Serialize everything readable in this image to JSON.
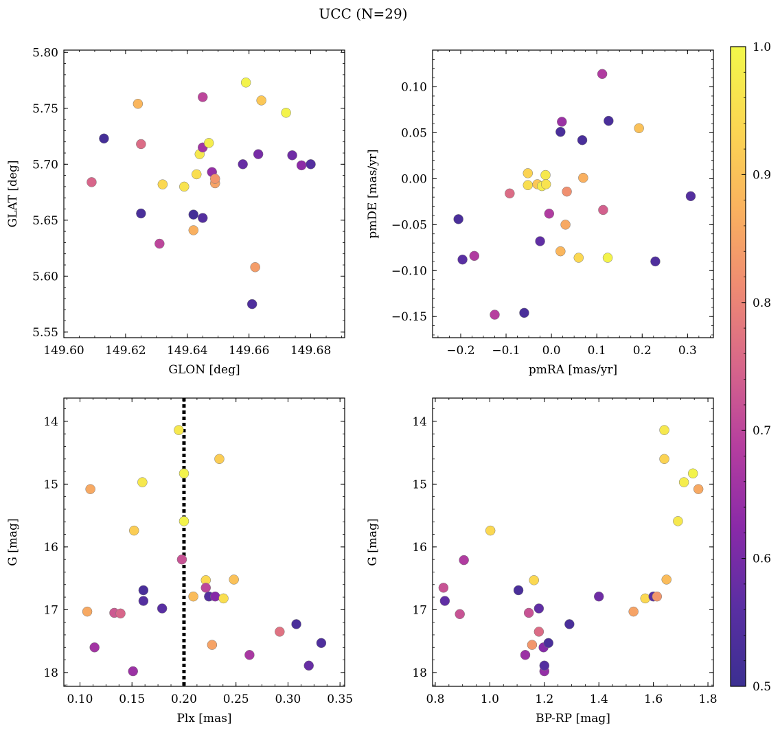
{
  "figure": {
    "title": "UCC (N=29)",
    "colorbar": {
      "min": 0.5,
      "max": 1.0,
      "ticks": [
        "0.5",
        "0.6",
        "0.7",
        "0.8",
        "0.9",
        "1.0"
      ],
      "tick_values": [
        0.5,
        0.6,
        0.7,
        0.8,
        0.9,
        1.0
      ],
      "colormap": "plasma (truncated)",
      "colors": [
        "#3b2f91",
        "#5a2fa3",
        "#8a2aa8",
        "#b53e9f",
        "#d7668a",
        "#ef8b72",
        "#fab35e",
        "#fbd752",
        "#f2f84a"
      ]
    },
    "marker_edge_color": "#777777",
    "vline_color": "#000000"
  },
  "chart_data": [
    {
      "type": "scatter",
      "title": "",
      "xlabel": "GLON [deg]",
      "ylabel": "GLAT [deg]",
      "xlim": [
        149.6,
        149.691
      ],
      "ylim": [
        5.545,
        5.802
      ],
      "y_inverted": false,
      "xticks": [
        149.6,
        149.62,
        149.64,
        149.66,
        149.68
      ],
      "xtick_labels": [
        "149.60",
        "149.62",
        "149.64",
        "149.66",
        "149.68"
      ],
      "yticks": [
        5.55,
        5.6,
        5.65,
        5.7,
        5.75,
        5.8
      ],
      "ytick_labels": [
        "5.55",
        "5.60",
        "5.65",
        "5.70",
        "5.75",
        "5.80"
      ],
      "points": [
        {
          "x": 149.613,
          "y": 5.723,
          "c": 0.52
        },
        {
          "x": 149.609,
          "y": 5.684,
          "c": 0.75
        },
        {
          "x": 149.624,
          "y": 5.754,
          "c": 0.88
        },
        {
          "x": 149.625,
          "y": 5.718,
          "c": 0.76
        },
        {
          "x": 149.625,
          "y": 5.656,
          "c": 0.53
        },
        {
          "x": 149.631,
          "y": 5.629,
          "c": 0.7
        },
        {
          "x": 149.632,
          "y": 5.682,
          "c": 0.94
        },
        {
          "x": 149.639,
          "y": 5.68,
          "c": 0.96
        },
        {
          "x": 149.642,
          "y": 5.641,
          "c": 0.87
        },
        {
          "x": 149.642,
          "y": 5.655,
          "c": 0.52
        },
        {
          "x": 149.643,
          "y": 5.691,
          "c": 0.95
        },
        {
          "x": 149.644,
          "y": 5.709,
          "c": 0.97
        },
        {
          "x": 149.645,
          "y": 5.76,
          "c": 0.7
        },
        {
          "x": 149.645,
          "y": 5.652,
          "c": 0.55
        },
        {
          "x": 149.645,
          "y": 5.715,
          "c": 0.66
        },
        {
          "x": 149.647,
          "y": 5.719,
          "c": 0.98
        },
        {
          "x": 149.648,
          "y": 5.693,
          "c": 0.64
        },
        {
          "x": 149.649,
          "y": 5.683,
          "c": 0.85
        },
        {
          "x": 149.649,
          "y": 5.687,
          "c": 0.83
        },
        {
          "x": 149.658,
          "y": 5.7,
          "c": 0.58
        },
        {
          "x": 149.659,
          "y": 5.773,
          "c": 0.99
        },
        {
          "x": 149.661,
          "y": 5.575,
          "c": 0.54
        },
        {
          "x": 149.662,
          "y": 5.608,
          "c": 0.84
        },
        {
          "x": 149.663,
          "y": 5.709,
          "c": 0.6
        },
        {
          "x": 149.664,
          "y": 5.757,
          "c": 0.91
        },
        {
          "x": 149.672,
          "y": 5.746,
          "c": 0.99
        },
        {
          "x": 149.674,
          "y": 5.708,
          "c": 0.59
        },
        {
          "x": 149.677,
          "y": 5.699,
          "c": 0.63
        },
        {
          "x": 149.68,
          "y": 5.7,
          "c": 0.55
        }
      ]
    },
    {
      "type": "scatter",
      "title": "",
      "xlabel": "pmRA [mas/yr]",
      "ylabel": "pmDE [mas/yr]",
      "xlim": [
        -0.262,
        0.357
      ],
      "ylim": [
        -0.173,
        0.14
      ],
      "y_inverted": false,
      "xticks": [
        -0.2,
        -0.1,
        0.0,
        0.1,
        0.2,
        0.3
      ],
      "xtick_labels": [
        "−0.2",
        "−0.1",
        "0.0",
        "0.1",
        "0.2",
        "0.3"
      ],
      "yticks": [
        -0.15,
        -0.1,
        -0.05,
        0.0,
        0.05,
        0.1
      ],
      "ytick_labels": [
        "−0.15",
        "−0.10",
        "−0.05",
        "0.00",
        "0.05",
        "0.10"
      ],
      "points": [
        {
          "x": -0.205,
          "y": -0.044,
          "c": 0.53
        },
        {
          "x": -0.196,
          "y": -0.088,
          "c": 0.56
        },
        {
          "x": -0.17,
          "y": -0.084,
          "c": 0.68
        },
        {
          "x": -0.125,
          "y": -0.148,
          "c": 0.69
        },
        {
          "x": -0.092,
          "y": -0.016,
          "c": 0.76
        },
        {
          "x": -0.06,
          "y": -0.146,
          "c": 0.53
        },
        {
          "x": -0.052,
          "y": 0.006,
          "c": 0.93
        },
        {
          "x": -0.052,
          "y": -0.007,
          "c": 0.95
        },
        {
          "x": -0.031,
          "y": -0.006,
          "c": 0.91
        },
        {
          "x": -0.025,
          "y": -0.068,
          "c": 0.57
        },
        {
          "x": -0.021,
          "y": -0.008,
          "c": 0.98
        },
        {
          "x": -0.013,
          "y": 0.004,
          "c": 0.97
        },
        {
          "x": -0.012,
          "y": -0.006,
          "c": 0.96
        },
        {
          "x": -0.005,
          "y": -0.038,
          "c": 0.68
        },
        {
          "x": 0.02,
          "y": 0.051,
          "c": 0.53
        },
        {
          "x": 0.02,
          "y": -0.079,
          "c": 0.88
        },
        {
          "x": 0.023,
          "y": 0.062,
          "c": 0.65
        },
        {
          "x": 0.031,
          "y": -0.05,
          "c": 0.86
        },
        {
          "x": 0.034,
          "y": -0.014,
          "c": 0.82
        },
        {
          "x": 0.06,
          "y": -0.086,
          "c": 0.94
        },
        {
          "x": 0.068,
          "y": 0.042,
          "c": 0.53
        },
        {
          "x": 0.07,
          "y": 0.001,
          "c": 0.87
        },
        {
          "x": 0.112,
          "y": 0.114,
          "c": 0.68
        },
        {
          "x": 0.114,
          "y": -0.034,
          "c": 0.74
        },
        {
          "x": 0.124,
          "y": -0.086,
          "c": 0.99
        },
        {
          "x": 0.126,
          "y": 0.063,
          "c": 0.53
        },
        {
          "x": 0.193,
          "y": 0.055,
          "c": 0.9
        },
        {
          "x": 0.229,
          "y": -0.09,
          "c": 0.54
        },
        {
          "x": 0.307,
          "y": -0.019,
          "c": 0.55
        }
      ]
    },
    {
      "type": "scatter",
      "title": "",
      "xlabel": "Plx [mas]",
      "ylabel": "G [mag]",
      "xlim": [
        0.0845,
        0.3545
      ],
      "ylim": [
        13.63,
        18.22
      ],
      "y_inverted": true,
      "xticks": [
        0.1,
        0.15,
        0.2,
        0.25,
        0.3,
        0.35
      ],
      "xtick_labels": [
        "0.10",
        "0.15",
        "0.20",
        "0.25",
        "0.30",
        "0.35"
      ],
      "yticks": [
        14,
        15,
        16,
        17,
        18
      ],
      "ytick_labels": [
        "14",
        "15",
        "16",
        "17",
        "18"
      ],
      "vline": {
        "x": 0.2,
        "style": "dotted"
      },
      "points": [
        {
          "x": 0.107,
          "y": 17.03,
          "c": 0.86
        },
        {
          "x": 0.11,
          "y": 15.08,
          "c": 0.86
        },
        {
          "x": 0.114,
          "y": 17.6,
          "c": 0.66
        },
        {
          "x": 0.133,
          "y": 17.05,
          "c": 0.73
        },
        {
          "x": 0.139,
          "y": 17.06,
          "c": 0.75
        },
        {
          "x": 0.151,
          "y": 17.98,
          "c": 0.65
        },
        {
          "x": 0.152,
          "y": 15.74,
          "c": 0.92
        },
        {
          "x": 0.16,
          "y": 14.97,
          "c": 0.97
        },
        {
          "x": 0.161,
          "y": 16.86,
          "c": 0.55
        },
        {
          "x": 0.161,
          "y": 16.69,
          "c": 0.53
        },
        {
          "x": 0.179,
          "y": 16.98,
          "c": 0.56
        },
        {
          "x": 0.195,
          "y": 14.14,
          "c": 0.97
        },
        {
          "x": 0.198,
          "y": 16.2,
          "c": 0.72
        },
        {
          "x": 0.2,
          "y": 14.83,
          "c": 0.99
        },
        {
          "x": 0.2,
          "y": 15.59,
          "c": 0.99
        },
        {
          "x": 0.209,
          "y": 16.79,
          "c": 0.89
        },
        {
          "x": 0.221,
          "y": 16.53,
          "c": 0.94
        },
        {
          "x": 0.221,
          "y": 16.65,
          "c": 0.7
        },
        {
          "x": 0.224,
          "y": 16.79,
          "c": 0.55
        },
        {
          "x": 0.227,
          "y": 17.56,
          "c": 0.85
        },
        {
          "x": 0.23,
          "y": 16.79,
          "c": 0.62
        },
        {
          "x": 0.234,
          "y": 14.6,
          "c": 0.92
        },
        {
          "x": 0.238,
          "y": 16.82,
          "c": 0.95
        },
        {
          "x": 0.248,
          "y": 16.52,
          "c": 0.9
        },
        {
          "x": 0.263,
          "y": 17.72,
          "c": 0.67
        },
        {
          "x": 0.292,
          "y": 17.35,
          "c": 0.77
        },
        {
          "x": 0.308,
          "y": 17.23,
          "c": 0.53
        },
        {
          "x": 0.32,
          "y": 17.89,
          "c": 0.58
        },
        {
          "x": 0.332,
          "y": 17.53,
          "c": 0.54
        }
      ]
    },
    {
      "type": "scatter",
      "title": "",
      "xlabel": "BP-RP [mag]",
      "ylabel": "G [mag]",
      "xlim": [
        0.79,
        1.82
      ],
      "ylim": [
        13.63,
        18.22
      ],
      "y_inverted": true,
      "xticks": [
        0.8,
        1.0,
        1.2,
        1.4,
        1.6,
        1.8
      ],
      "xtick_labels": [
        "0.8",
        "1.0",
        "1.2",
        "1.4",
        "1.6",
        "1.8"
      ],
      "yticks": [
        14,
        15,
        16,
        17,
        18
      ],
      "ytick_labels": [
        "14",
        "15",
        "16",
        "17",
        "18"
      ],
      "points": [
        {
          "x": 0.83,
          "y": 16.65,
          "c": 0.72
        },
        {
          "x": 0.835,
          "y": 16.86,
          "c": 0.57
        },
        {
          "x": 0.89,
          "y": 17.07,
          "c": 0.72
        },
        {
          "x": 0.905,
          "y": 16.21,
          "c": 0.68
        },
        {
          "x": 1.002,
          "y": 15.74,
          "c": 0.94
        },
        {
          "x": 1.105,
          "y": 16.69,
          "c": 0.53
        },
        {
          "x": 1.13,
          "y": 17.72,
          "c": 0.65
        },
        {
          "x": 1.143,
          "y": 17.05,
          "c": 0.72
        },
        {
          "x": 1.155,
          "y": 17.56,
          "c": 0.83
        },
        {
          "x": 1.162,
          "y": 16.53,
          "c": 0.94
        },
        {
          "x": 1.18,
          "y": 16.98,
          "c": 0.57
        },
        {
          "x": 1.18,
          "y": 17.35,
          "c": 0.76
        },
        {
          "x": 1.197,
          "y": 17.6,
          "c": 0.62
        },
        {
          "x": 1.2,
          "y": 17.98,
          "c": 0.64
        },
        {
          "x": 1.2,
          "y": 17.89,
          "c": 0.55
        },
        {
          "x": 1.215,
          "y": 17.53,
          "c": 0.53
        },
        {
          "x": 1.292,
          "y": 17.23,
          "c": 0.53
        },
        {
          "x": 1.4,
          "y": 16.79,
          "c": 0.59
        },
        {
          "x": 1.527,
          "y": 17.03,
          "c": 0.85
        },
        {
          "x": 1.57,
          "y": 16.82,
          "c": 0.94
        },
        {
          "x": 1.6,
          "y": 16.79,
          "c": 0.56
        },
        {
          "x": 1.613,
          "y": 16.79,
          "c": 0.83
        },
        {
          "x": 1.64,
          "y": 14.14,
          "c": 0.97
        },
        {
          "x": 1.64,
          "y": 14.6,
          "c": 0.93
        },
        {
          "x": 1.648,
          "y": 16.52,
          "c": 0.89
        },
        {
          "x": 1.69,
          "y": 15.59,
          "c": 0.97
        },
        {
          "x": 1.712,
          "y": 14.97,
          "c": 0.98
        },
        {
          "x": 1.745,
          "y": 14.83,
          "c": 0.99
        },
        {
          "x": 1.765,
          "y": 15.08,
          "c": 0.86
        }
      ]
    }
  ]
}
